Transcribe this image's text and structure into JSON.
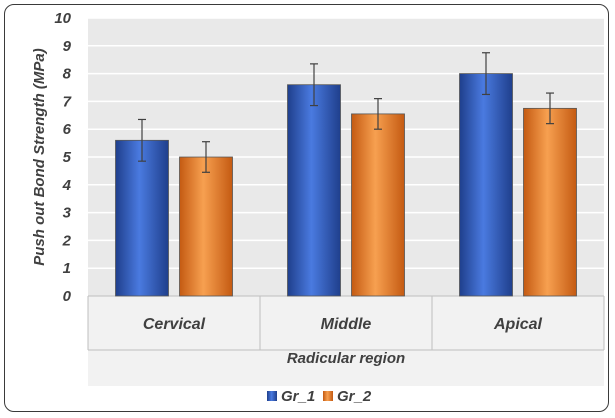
{
  "chart_data": {
    "type": "bar",
    "title": "",
    "xlabel": "Radicular region",
    "ylabel": "Push out Bond Strength (MPa)",
    "ylim": [
      0,
      10
    ],
    "yticks": [
      0,
      1,
      2,
      3,
      4,
      5,
      6,
      7,
      8,
      9,
      10
    ],
    "categories": [
      "Cervical",
      "Middle",
      "Apical"
    ],
    "series": [
      {
        "name": "Gr_1",
        "values": [
          5.6,
          7.6,
          8.0
        ],
        "errors": [
          0.75,
          0.75,
          0.75
        ],
        "color": "#2e5cb8"
      },
      {
        "name": "Gr_2",
        "values": [
          5.0,
          6.55,
          6.75
        ],
        "errors": [
          0.55,
          0.55,
          0.55
        ],
        "color": "#ed7d31"
      }
    ],
    "grid": true,
    "legend": "bottom"
  }
}
